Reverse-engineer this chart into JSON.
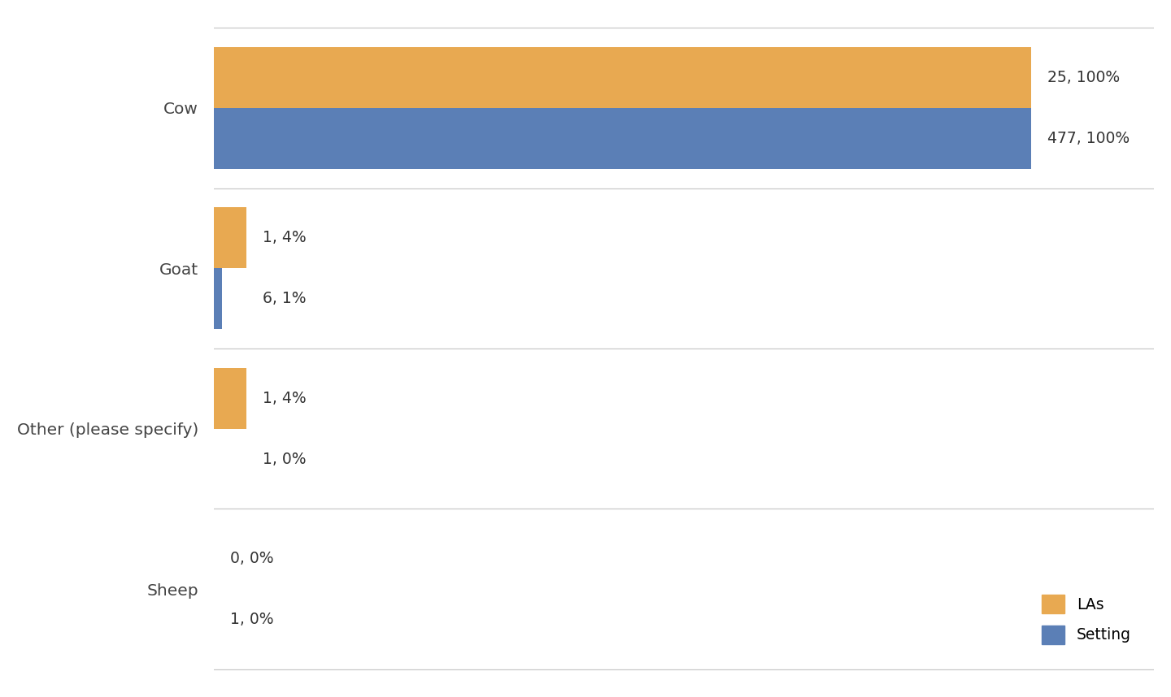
{
  "categories": [
    "Sheep",
    "Other (please specify)",
    "Goat",
    "Cow"
  ],
  "la_pct_values": [
    0,
    4,
    4,
    100
  ],
  "setting_pct_values": [
    0,
    0,
    1,
    100
  ],
  "la_labels": [
    "0, 0%",
    "1, 4%",
    "1, 4%",
    "25, 100%"
  ],
  "setting_labels": [
    "1, 0%",
    "1, 0%",
    "6, 1%",
    "477, 100%"
  ],
  "la_color": "#E8A951",
  "setting_color": "#5B7FB6",
  "background_color": "#FFFFFF",
  "grid_color": "#C8C8C8",
  "bar_height": 0.38,
  "xlim_max": 115,
  "legend_labels": [
    "LAs",
    "Setting"
  ],
  "label_font_size": 13.5,
  "tick_font_size": 14.5,
  "legend_font_size": 13.5
}
